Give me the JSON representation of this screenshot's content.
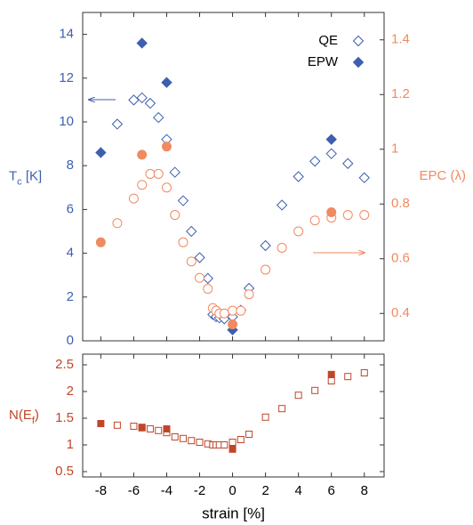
{
  "chart_data": [
    {
      "type": "scatter",
      "ylabel": {
        "main": "T",
        "sub": "c",
        "unit": " [K]"
      },
      "y2label": "EPC (λ)",
      "xlim": [
        -9.1,
        9.2
      ],
      "xticks": [
        -8,
        -6,
        -4,
        -2,
        0,
        2,
        4,
        6,
        8
      ],
      "ylim": [
        0,
        15
      ],
      "yticks": [
        0,
        2,
        4,
        6,
        8,
        10,
        12,
        14
      ],
      "ytick_color": "#3d5fb0",
      "y2lim": [
        0.3,
        1.5
      ],
      "y2ticks": [
        0.4,
        0.6,
        0.8,
        1,
        1.2,
        1.4
      ],
      "y2tick_color": "#f08a60",
      "series": [
        {
          "name": "QE",
          "color": "#3d5fb0",
          "marker": "diamond",
          "filled": false,
          "x": [
            -7,
            -6,
            -5.5,
            -5,
            -4.5,
            -4,
            -3.5,
            -3,
            -2.5,
            -2,
            -1.5,
            -1.2,
            -1,
            -0.8,
            -0.5,
            0,
            0.5,
            1,
            2,
            3,
            4,
            5,
            6,
            7,
            8
          ],
          "values": [
            9.9,
            11.0,
            11.1,
            10.85,
            10.2,
            9.2,
            7.7,
            6.4,
            5.0,
            3.8,
            2.85,
            1.2,
            1.1,
            1.05,
            1.0,
            1.1,
            1.4,
            2.4,
            4.35,
            6.2,
            7.5,
            8.2,
            8.55,
            8.1,
            7.45
          ]
        },
        {
          "name": "EPW",
          "color": "#3d5fb0",
          "marker": "diamond",
          "filled": true,
          "x": [
            -8,
            -5.5,
            -4,
            0,
            6
          ],
          "values": [
            8.6,
            13.6,
            11.8,
            0.5,
            9.2
          ]
        },
        {
          "color": "#f08a60",
          "marker": "circle",
          "filled": false,
          "axis": "y2",
          "x": [
            -7,
            -6,
            -5.5,
            -5,
            -4.5,
            -4,
            -3.5,
            -3,
            -2.5,
            -2,
            -1.5,
            -1.2,
            -1,
            -0.8,
            -0.5,
            0,
            0.5,
            1,
            2,
            3,
            4,
            5,
            6,
            7,
            8
          ],
          "values": [
            0.73,
            0.82,
            0.87,
            0.91,
            0.91,
            0.86,
            0.76,
            0.66,
            0.59,
            0.53,
            0.49,
            0.42,
            0.41,
            0.4,
            0.4,
            0.41,
            0.41,
            0.47,
            0.56,
            0.64,
            0.7,
            0.74,
            0.75,
            0.76,
            0.76
          ]
        },
        {
          "color": "#f08a60",
          "marker": "circle",
          "filled": true,
          "axis": "y2",
          "x": [
            -8,
            -5.5,
            -4,
            0,
            6
          ],
          "values": [
            0.66,
            0.98,
            1.01,
            0.36,
            0.77
          ]
        }
      ]
    },
    {
      "type": "scatter",
      "ylabel": {
        "main": "N(E",
        "sub": "f",
        "unit": ")"
      },
      "xlabel": "strain [%]",
      "xlim": [
        -9.1,
        9.2
      ],
      "xticks": [
        -8,
        -6,
        -4,
        -2,
        0,
        2,
        4,
        6,
        8
      ],
      "ylim": [
        0.4,
        2.7
      ],
      "yticks": [
        0.5,
        1,
        1.5,
        2,
        2.5
      ],
      "ytick_color": "#c0462a",
      "series": [
        {
          "color": "#c0462a",
          "marker": "square",
          "filled": false,
          "x": [
            -7,
            -6,
            -5.5,
            -5,
            -4.5,
            -4,
            -3.5,
            -3,
            -2.5,
            -2,
            -1.5,
            -1.2,
            -1,
            -0.8,
            -0.5,
            0,
            0.5,
            1,
            2,
            3,
            4,
            5,
            6,
            7,
            8
          ],
          "values": [
            1.37,
            1.35,
            1.32,
            1.3,
            1.27,
            1.23,
            1.15,
            1.12,
            1.08,
            1.05,
            1.02,
            1.0,
            1.0,
            1.0,
            1.0,
            1.05,
            1.1,
            1.2,
            1.52,
            1.68,
            1.93,
            2.02,
            2.2,
            2.28,
            2.35
          ]
        },
        {
          "color": "#c0462a",
          "marker": "square",
          "filled": true,
          "x": [
            -8,
            -5.5,
            -4,
            0,
            6
          ],
          "values": [
            1.4,
            1.33,
            1.3,
            0.92,
            2.32
          ]
        }
      ]
    }
  ]
}
